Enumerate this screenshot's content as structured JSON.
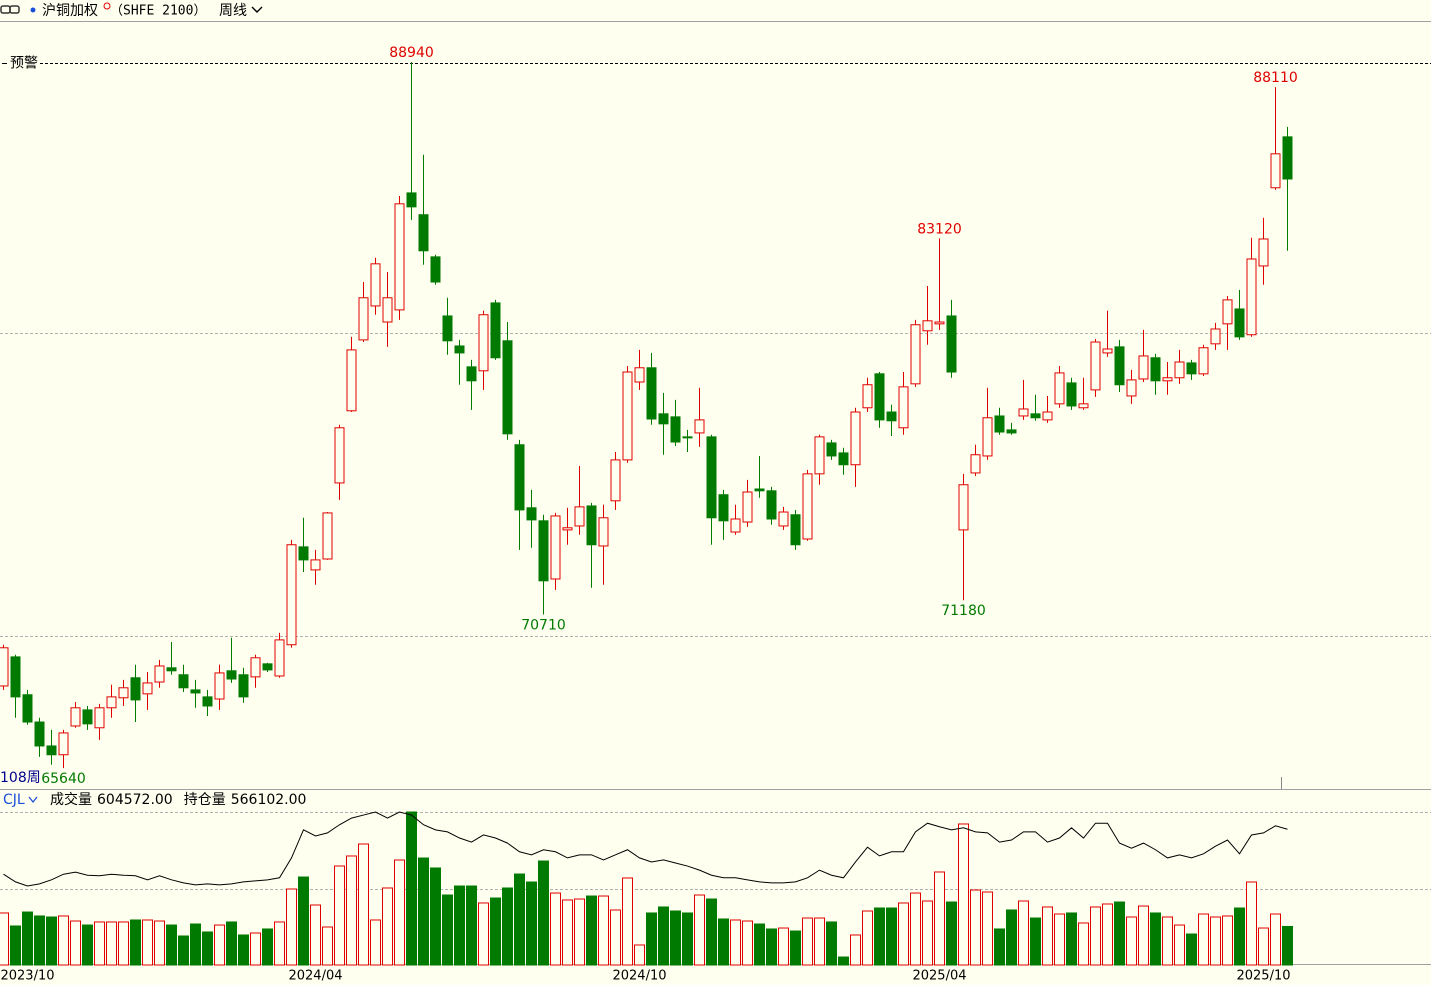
{
  "header": {
    "instrument": "沪铜加权",
    "code": "（SHFE 2100）",
    "period": "周线"
  },
  "chart_data": [
    {
      "type": "candlestick",
      "categories": [
        null,
        null,
        "2023/10",
        null,
        null,
        null,
        null,
        null,
        null,
        null,
        null,
        null,
        null,
        null,
        null,
        null,
        null,
        null,
        null,
        null,
        null,
        null,
        null,
        null,
        null,
        null,
        "2024/04",
        null,
        null,
        null,
        null,
        null,
        null,
        null,
        null,
        null,
        null,
        null,
        null,
        null,
        null,
        null,
        null,
        null,
        null,
        null,
        null,
        null,
        null,
        null,
        null,
        null,
        null,
        "2024/10",
        null,
        null,
        null,
        null,
        null,
        null,
        null,
        null,
        null,
        null,
        null,
        null,
        null,
        null,
        null,
        null,
        null,
        null,
        null,
        null,
        null,
        null,
        null,
        null,
        "2025/04",
        null,
        null,
        null,
        null,
        null,
        null,
        null,
        null,
        null,
        null,
        null,
        null,
        null,
        null,
        null,
        null,
        null,
        null,
        null,
        null,
        null,
        null,
        null,
        null,
        null,
        null,
        "2025/10",
        null,
        null
      ],
      "open": [
        68350,
        69310,
        68060,
        67160,
        66370,
        66080,
        67030,
        67560,
        66970,
        67630,
        67960,
        68620,
        68090,
        68480,
        68950,
        68720,
        68220,
        67990,
        67920,
        68850,
        68720,
        68650,
        69080,
        68680,
        69710,
        72940,
        72180,
        72540,
        75050,
        77430,
        79770,
        80890,
        80360,
        80760,
        84620,
        83900,
        82510,
        80560,
        79570,
        78880,
        78750,
        80990,
        79740,
        76310,
        74230,
        73800,
        71880,
        73500,
        73630,
        74290,
        72970,
        74460,
        75810,
        78380,
        78850,
        77330,
        77230,
        76570,
        76700,
        76570,
        74660,
        73430,
        73760,
        74850,
        74790,
        73630,
        74000,
        73200,
        75350,
        76370,
        76040,
        75650,
        77530,
        78650,
        77390,
        76870,
        78320,
        80070,
        80300,
        80560,
        73500,
        75380,
        75940,
        77260,
        76800,
        77260,
        77330,
        77130,
        77660,
        78350,
        77530,
        78120,
        79340,
        79540,
        77920,
        78480,
        79180,
        78420,
        78520,
        79010,
        78650,
        79640,
        80300,
        80790,
        79940,
        82210,
        84790,
        86470
      ],
      "high": [
        69710,
        69380,
        68220,
        67300,
        66900,
        66900,
        67820,
        67690,
        67760,
        68390,
        68550,
        69050,
        68810,
        69210,
        69800,
        69050,
        68550,
        68220,
        69050,
        69940,
        68950,
        69380,
        69110,
        70100,
        73170,
        73900,
        72840,
        74090,
        76970,
        79870,
        81680,
        82480,
        82010,
        84520,
        88940,
        85880,
        82580,
        81160,
        79770,
        79110,
        80730,
        81090,
        80360,
        76470,
        74820,
        74000,
        74060,
        74230,
        75610,
        74390,
        74330,
        76070,
        78910,
        79440,
        79340,
        78020,
        77790,
        76800,
        78190,
        76640,
        74820,
        74330,
        75150,
        75940,
        74920,
        74260,
        74160,
        75480,
        76640,
        76470,
        76210,
        77530,
        78520,
        78710,
        77630,
        78710,
        80430,
        81550,
        83120,
        81090,
        75350,
        76310,
        78190,
        77530,
        77030,
        78450,
        77960,
        77920,
        78910,
        78520,
        78520,
        79800,
        80730,
        79770,
        78780,
        80100,
        79310,
        79040,
        79440,
        79110,
        79610,
        80330,
        81220,
        81420,
        83140,
        83800,
        88110,
        86800
      ],
      "low": [
        68220,
        67300,
        67070,
        66010,
        65750,
        65640,
        66970,
        66900,
        66570,
        67300,
        67690,
        67160,
        67560,
        68290,
        68720,
        68150,
        67630,
        67360,
        67560,
        68450,
        67790,
        68290,
        68810,
        68620,
        69610,
        72110,
        71690,
        72510,
        74490,
        77390,
        79700,
        80600,
        79540,
        80430,
        83730,
        82250,
        81590,
        79280,
        78290,
        77460,
        78120,
        79110,
        76470,
        72840,
        72910,
        70710,
        71520,
        73010,
        73340,
        71590,
        71690,
        74160,
        75710,
        78120,
        76970,
        75980,
        76270,
        76070,
        76240,
        73010,
        73170,
        73340,
        73600,
        74560,
        73670,
        73500,
        72840,
        73140,
        74990,
        75810,
        75320,
        74920,
        77390,
        76870,
        76600,
        76640,
        78220,
        79610,
        80100,
        78520,
        71180,
        75280,
        75810,
        76640,
        76640,
        77130,
        77100,
        77030,
        77530,
        77460,
        77460,
        77890,
        79210,
        78050,
        77660,
        78380,
        77960,
        77960,
        78320,
        78450,
        78580,
        79440,
        79440,
        79770,
        79870,
        81590,
        84720,
        82710
      ],
      "close": [
        69610,
        67990,
        67160,
        66370,
        66080,
        66800,
        67630,
        67100,
        67630,
        67990,
        68290,
        67890,
        68450,
        69010,
        68850,
        68290,
        68120,
        67690,
        68780,
        68580,
        67990,
        69280,
        68880,
        69870,
        73010,
        72510,
        72510,
        74060,
        76870,
        79440,
        81160,
        82280,
        81160,
        84260,
        84160,
        82710,
        81680,
        79740,
        79340,
        78420,
        80600,
        79180,
        76670,
        74160,
        73830,
        71820,
        73960,
        73570,
        74260,
        73010,
        73900,
        75810,
        78710,
        78850,
        77160,
        77000,
        76400,
        76540,
        77130,
        73900,
        73800,
        73860,
        74750,
        74790,
        73860,
        74090,
        73010,
        75350,
        76570,
        75940,
        75650,
        77390,
        78290,
        77130,
        77100,
        78220,
        80270,
        80400,
        80360,
        78710,
        74990,
        75980,
        77200,
        76730,
        76700,
        77490,
        77200,
        77390,
        78680,
        77590,
        77660,
        79700,
        79470,
        78290,
        78450,
        79240,
        78420,
        78520,
        79040,
        78650,
        79510,
        80130,
        81090,
        79870,
        82440,
        83100,
        85910,
        85080
      ],
      "up_color": "#e00000",
      "down_color": "#007a00",
      "ylim": [
        64950,
        90260
      ],
      "grid_values": [
        70000,
        80000
      ],
      "alert": {
        "label": "预警",
        "value": 88900
      },
      "high_labels": [
        null,
        null,
        null,
        null,
        null,
        null,
        null,
        null,
        null,
        null,
        null,
        null,
        null,
        null,
        null,
        null,
        null,
        null,
        null,
        null,
        null,
        null,
        null,
        null,
        null,
        null,
        null,
        null,
        null,
        null,
        null,
        null,
        null,
        null,
        "88940",
        null,
        null,
        null,
        null,
        null,
        null,
        null,
        null,
        null,
        null,
        null,
        null,
        null,
        null,
        null,
        null,
        null,
        null,
        null,
        null,
        null,
        null,
        null,
        null,
        null,
        null,
        null,
        null,
        null,
        null,
        null,
        null,
        null,
        null,
        null,
        null,
        null,
        null,
        null,
        null,
        null,
        null,
        null,
        "83120",
        null,
        null,
        null,
        null,
        null,
        null,
        null,
        null,
        null,
        null,
        null,
        null,
        null,
        null,
        null,
        null,
        null,
        null,
        null,
        null,
        null,
        null,
        null,
        null,
        null,
        null,
        null,
        "88110",
        null
      ],
      "low_labels": [
        null,
        null,
        null,
        null,
        null,
        "65640",
        null,
        null,
        null,
        null,
        null,
        null,
        null,
        null,
        null,
        null,
        null,
        null,
        null,
        null,
        null,
        null,
        null,
        null,
        null,
        null,
        null,
        null,
        null,
        null,
        null,
        null,
        null,
        null,
        null,
        null,
        null,
        null,
        null,
        null,
        null,
        null,
        null,
        null,
        null,
        "70710",
        null,
        null,
        null,
        null,
        null,
        null,
        null,
        null,
        null,
        null,
        null,
        null,
        null,
        null,
        null,
        null,
        null,
        null,
        null,
        null,
        null,
        null,
        null,
        null,
        null,
        null,
        null,
        null,
        null,
        null,
        null,
        null,
        null,
        null,
        "71180",
        null,
        null,
        null,
        null,
        null,
        null,
        null,
        null,
        null,
        null,
        null,
        null,
        null,
        null,
        null,
        null,
        null,
        null,
        null,
        null,
        null,
        null,
        null,
        null,
        null,
        null,
        null
      ],
      "bar_count_label": "108周"
    },
    {
      "type": "volume",
      "indicator": "CJL",
      "ylim": [
        0,
        2400000
      ],
      "y2lim": [
        300000,
        600000
      ],
      "grid_values": [
        1200000,
        2400000
      ],
      "series": [
        {
          "name": "成交量",
          "last_label": "604572.00",
          "values": [
            816000,
            612000,
            831000,
            769000,
            753000,
            769000,
            690000,
            627000,
            675000,
            675000,
            675000,
            706000,
            706000,
            690000,
            627000,
            455000,
            643000,
            518000,
            627000,
            675000,
            471000,
            502000,
            565000,
            675000,
            1192000,
            1380000,
            941000,
            596000,
            1553000,
            1710000,
            1898000,
            706000,
            1208000,
            1647000,
            2400000,
            1678000,
            1522000,
            1098000,
            1239000,
            1239000,
            973000,
            1051000,
            1208000,
            1427000,
            1302000,
            1631000,
            1129000,
            1020000,
            1035000,
            1082000,
            1082000,
            863000,
            1365000,
            314000,
            816000,
            910000,
            847000,
            816000,
            1098000,
            1035000,
            722000,
            706000,
            690000,
            643000,
            565000,
            580000,
            533000,
            737000,
            737000,
            675000,
            125000,
            471000,
            847000,
            894000,
            894000,
            973000,
            1129000,
            1004000,
            1459000,
            988000,
            2212000,
            1176000,
            1145000,
            565000,
            863000,
            1004000,
            737000,
            910000,
            800000,
            816000,
            659000,
            910000,
            957000,
            988000,
            753000,
            925000,
            816000,
            753000,
            627000,
            486000,
            800000,
            753000,
            769000,
            894000,
            1302000,
            580000,
            800000,
            604572
          ]
        },
        {
          "name": "持仓量",
          "axis": "y2",
          "color": "#000000",
          "last_label": "566102.00",
          "values": [
            478000,
            463000,
            455000,
            459000,
            467000,
            478000,
            482000,
            476000,
            475000,
            478000,
            476000,
            475000,
            467000,
            475000,
            467000,
            461000,
            457000,
            459000,
            457000,
            459000,
            463000,
            465000,
            467000,
            471000,
            510000,
            565000,
            553000,
            559000,
            575000,
            588000,
            594000,
            600000,
            588000,
            600000,
            594000,
            575000,
            565000,
            561000,
            549000,
            541000,
            555000,
            549000,
            539000,
            522000,
            516000,
            526000,
            522000,
            510000,
            516000,
            516000,
            506000,
            516000,
            526000,
            510000,
            502000,
            506000,
            500000,
            494000,
            486000,
            476000,
            471000,
            471000,
            467000,
            463000,
            461000,
            461000,
            463000,
            471000,
            486000,
            476000,
            471000,
            502000,
            531000,
            514000,
            522000,
            522000,
            561000,
            578000,
            571000,
            565000,
            569000,
            561000,
            559000,
            541000,
            545000,
            561000,
            561000,
            541000,
            549000,
            569000,
            549000,
            578000,
            578000,
            539000,
            529000,
            539000,
            526000,
            510000,
            516000,
            510000,
            518000,
            533000,
            545000,
            518000,
            555000,
            559000,
            573000,
            566102
          ]
        }
      ]
    }
  ]
}
